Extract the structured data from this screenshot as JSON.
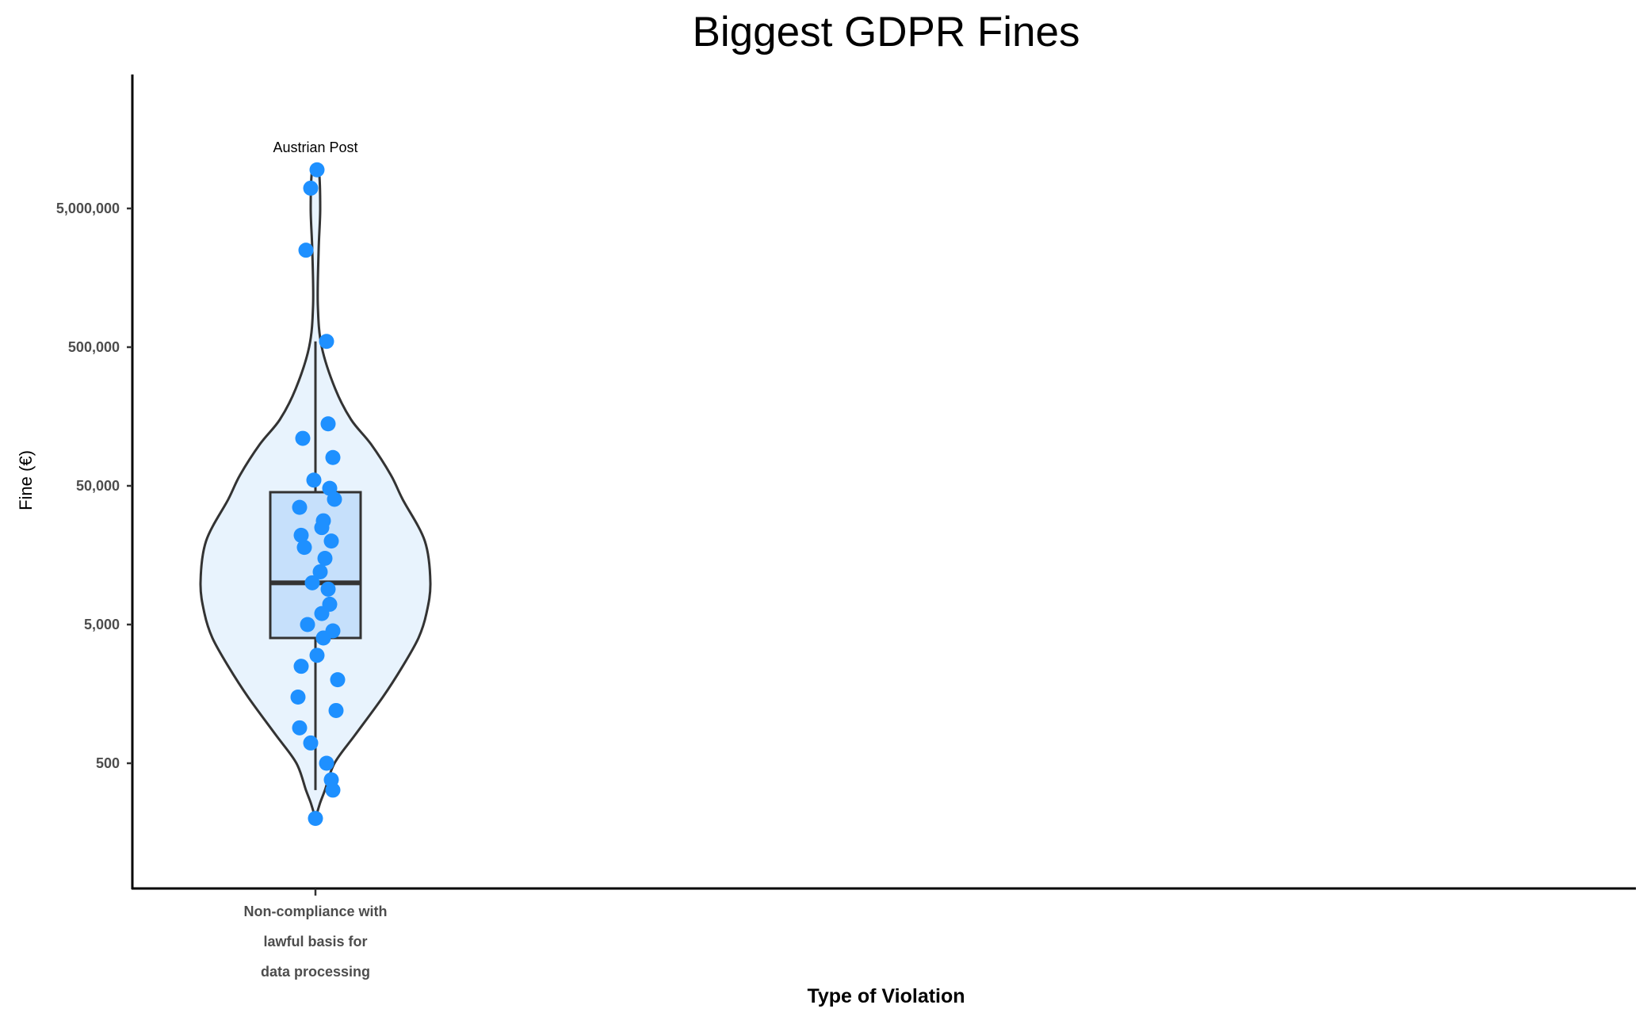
{
  "chart_data": {
    "type": "violin",
    "title": "Biggest GDPR Fines",
    "xlabel": "Type of Violation",
    "ylabel": "Fine (€)",
    "y_scale": "log10",
    "ylim": [
      170,
      13000000
    ],
    "y_ticks": [
      500,
      5000,
      50000,
      500000,
      5000000
    ],
    "y_tick_labels": [
      "500",
      "5,000",
      "50,000",
      "500,000",
      "5,000,000"
    ],
    "categories": [
      "Non-compliance with lawful basis for data processing"
    ],
    "category_label_lines": [
      "Non-compliance with",
      "lawful basis for",
      "data processing"
    ],
    "box": {
      "min": 320,
      "q1": 4000,
      "median": 10000,
      "q3": 45000,
      "max": 550000
    },
    "violin_range": [
      200,
      9500000
    ],
    "points": [
      {
        "value": 9500000,
        "label": "Austrian Post"
      },
      {
        "value": 7000000
      },
      {
        "value": 2500000
      },
      {
        "value": 550000
      },
      {
        "value": 140000
      },
      {
        "value": 110000
      },
      {
        "value": 80000
      },
      {
        "value": 55000
      },
      {
        "value": 48000
      },
      {
        "value": 40000
      },
      {
        "value": 35000
      },
      {
        "value": 28000
      },
      {
        "value": 25000
      },
      {
        "value": 22000
      },
      {
        "value": 20000
      },
      {
        "value": 18000
      },
      {
        "value": 15000
      },
      {
        "value": 12000
      },
      {
        "value": 10000
      },
      {
        "value": 9000
      },
      {
        "value": 7000
      },
      {
        "value": 6000
      },
      {
        "value": 5000
      },
      {
        "value": 4500
      },
      {
        "value": 4000
      },
      {
        "value": 3000
      },
      {
        "value": 2500
      },
      {
        "value": 2000
      },
      {
        "value": 1500
      },
      {
        "value": 1200
      },
      {
        "value": 900
      },
      {
        "value": 700
      },
      {
        "value": 500
      },
      {
        "value": 380
      },
      {
        "value": 320
      },
      {
        "value": 200
      }
    ],
    "annotations": [
      {
        "text": "Austrian Post",
        "value": 9500000
      }
    ],
    "colors": {
      "points": "#1e90ff",
      "violin_fill": "#e8f3fd",
      "box_fill": "#c6e0fb",
      "outline": "#333333"
    },
    "grid": false,
    "legend": "none"
  }
}
